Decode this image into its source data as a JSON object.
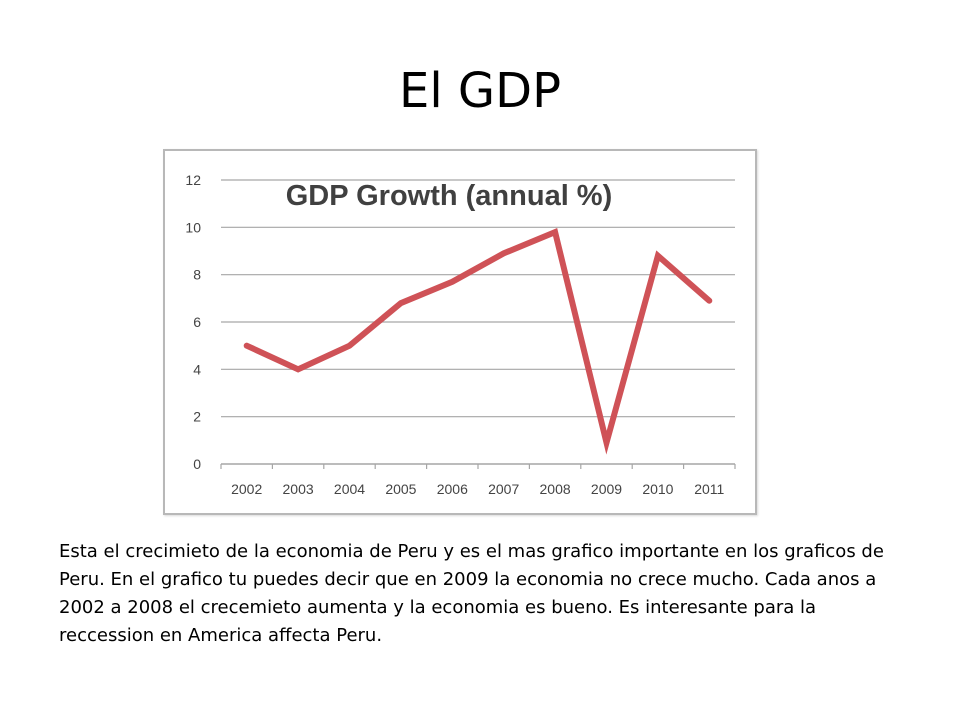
{
  "slide": {
    "title": "El GDP",
    "body": "Esta el crecimieto de la economia de Peru y es el mas grafico importante en los graficos de Peru. En el grafico tu puedes decir que en 2009 la economia no crece mucho. Cada anos a 2002 a 2008 el crecemieto aumenta y la economia es bueno. Es interesante para la reccession en America affecta Peru."
  },
  "chart_data": {
    "type": "line",
    "title": "GDP Growth (annual %)",
    "xlabel": "",
    "ylabel": "",
    "categories": [
      "2002",
      "2003",
      "2004",
      "2005",
      "2006",
      "2007",
      "2008",
      "2009",
      "2010",
      "2011"
    ],
    "series": [
      {
        "values": [
          5.0,
          4.0,
          5.0,
          6.8,
          7.7,
          8.9,
          9.8,
          0.9,
          8.8,
          6.9
        ]
      }
    ],
    "ylim": [
      0,
      12
    ],
    "yticks": [
      0,
      2,
      4,
      6,
      8,
      10,
      12
    ],
    "grid": true,
    "colors": {
      "line": "#cf5257",
      "grid": "#a6a6a6"
    }
  }
}
